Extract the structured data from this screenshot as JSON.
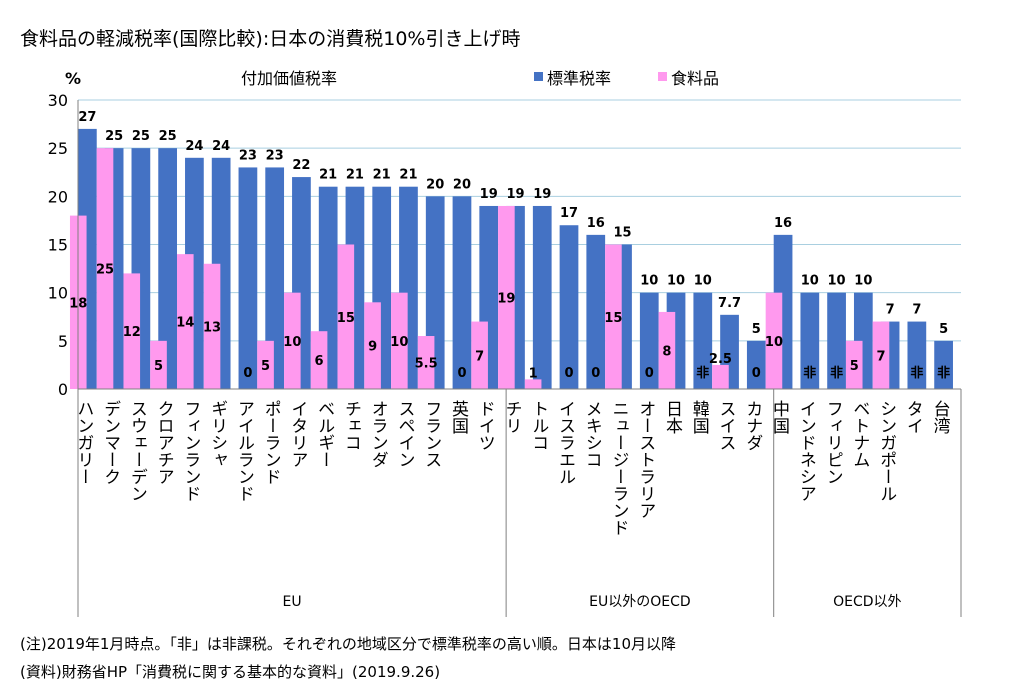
{
  "title": "食料品の軽減税率(国際比較):日本の消費税10%引き上げ時",
  "y_unit": "%",
  "y_axis_title": "付加価値税率",
  "notes": [
    "(注)2019年1月時点。「非」は非課税。それぞれの地域区分で標準税率の高い順。日本は10月以降",
    "(資料)財務省HP「消費税に関する基本的な資料」(2019.9.26)"
  ],
  "colors": {
    "standard": "#4472C4",
    "food": "#FF99EE",
    "grid": "#A9CFE0"
  },
  "chart_data": {
    "type": "bar",
    "ylim": [
      0,
      30
    ],
    "yticks": [
      0,
      5,
      10,
      15,
      20,
      25,
      30
    ],
    "grid": true,
    "legend_position": "top-right",
    "series": [
      {
        "name": "標準税率",
        "values": [
          27,
          25,
          25,
          25,
          24,
          24,
          23,
          23,
          22,
          21,
          21,
          21,
          21,
          20,
          20,
          19,
          19,
          19,
          17,
          16,
          15,
          10,
          10,
          10,
          7.7,
          5,
          16,
          10,
          10,
          10,
          7,
          7,
          5
        ],
        "labels": [
          "27",
          "25",
          "25",
          "25",
          "24",
          "24",
          "23",
          "23",
          "22",
          "21",
          "21",
          "21",
          "21",
          "20",
          "20",
          "19",
          "19",
          "19",
          "17",
          "16",
          "15",
          "10",
          "10",
          "10",
          "7.7",
          "5",
          "16",
          "10",
          "10",
          "10",
          "7",
          "7",
          "5"
        ]
      },
      {
        "name": "食料品",
        "values": [
          18,
          25,
          12,
          5,
          14,
          13,
          0,
          5,
          10,
          6,
          15,
          9,
          10,
          5.5,
          0,
          7,
          19,
          1,
          0,
          0,
          15,
          0,
          8,
          0,
          2.5,
          0,
          10,
          0,
          0,
          5,
          7,
          0,
          0
        ],
        "labels": [
          "18",
          "25",
          "12",
          "5",
          "14",
          "13",
          "0",
          "5",
          "10",
          "6",
          "15",
          "9",
          "10",
          "5.5",
          "0",
          "7",
          "19",
          "1",
          "0",
          "0",
          "15",
          "0",
          "8",
          "非",
          "2.5",
          "0",
          "10",
          "非",
          "非",
          "5",
          "7",
          "非",
          "非"
        ]
      }
    ],
    "categories": [
      "ハンガリー",
      "デンマーク",
      "スウェーデン",
      "クロアチア",
      "フィンランド",
      "ギリシャ",
      "アイルランド",
      "ポーランド",
      "イタリア",
      "ベルギー",
      "チェコ",
      "オランダ",
      "スペイン",
      "フランス",
      "英国",
      "ドイツ",
      "チリ",
      "トルコ",
      "イスラエル",
      "メキシコ",
      "ニュージーランド",
      "オーストラリア",
      "日本",
      "韓国",
      "スイス",
      "カナダ",
      "中国",
      "インドネシア",
      "フィリピン",
      "ベトナム",
      "シンガポール",
      "タイ",
      "台湾"
    ],
    "groups": [
      {
        "label": "EU",
        "count": 16
      },
      {
        "label": "EU以外のOECD",
        "count": 10
      },
      {
        "label": "OECD以外",
        "count": 7
      }
    ]
  }
}
